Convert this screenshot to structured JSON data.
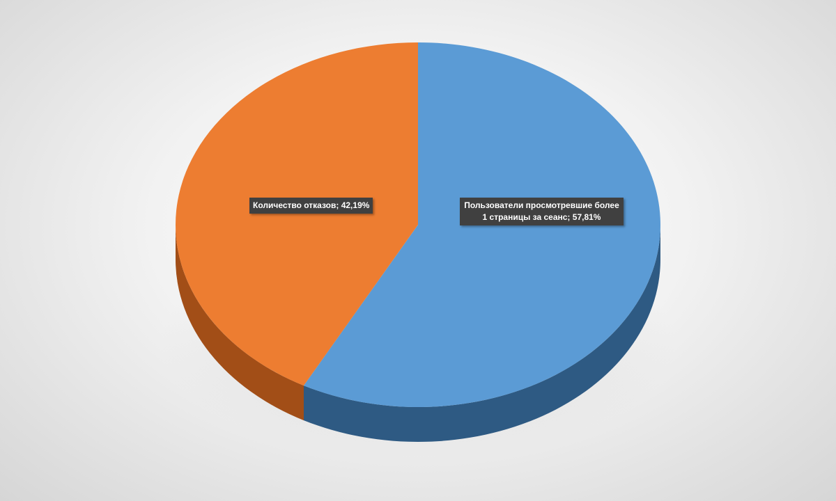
{
  "chart_data": {
    "type": "pie",
    "style": "3d",
    "series": [
      {
        "label": "Пользователи просмотревшие более 1 страницы за сеанс",
        "value": 57.81,
        "data_label": "Пользователи просмотревшие более 1 страницы за сеанс; 57,81%",
        "color": "#5b9bd5",
        "side_color": "#2e5a83"
      },
      {
        "label": "Количество отказов",
        "value": 42.19,
        "data_label": "Количество отказов; 42,19%",
        "color": "#ed7d31",
        "side_color": "#a24e17"
      }
    ]
  }
}
